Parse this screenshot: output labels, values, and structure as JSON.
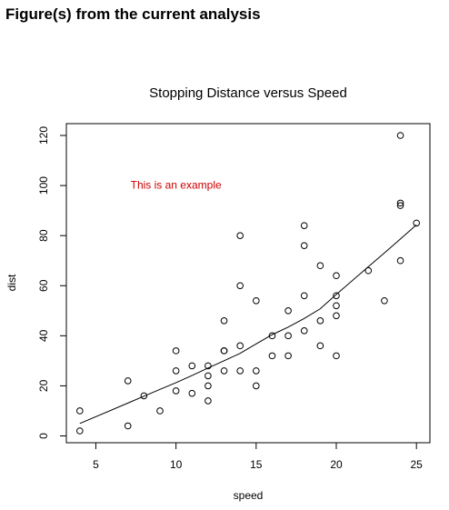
{
  "header": {
    "title": "Figure(s) from the current analysis"
  },
  "chart_data": {
    "type": "scatter",
    "title": "Stopping Distance versus Speed",
    "x_label": "speed",
    "y_label": "dist",
    "x": [
      4,
      4,
      7,
      7,
      8,
      9,
      10,
      10,
      10,
      11,
      11,
      12,
      12,
      12,
      12,
      13,
      13,
      13,
      13,
      14,
      14,
      14,
      14,
      15,
      15,
      15,
      16,
      16,
      17,
      17,
      17,
      18,
      18,
      18,
      18,
      19,
      19,
      19,
      20,
      20,
      20,
      20,
      20,
      22,
      23,
      24,
      24,
      24,
      24,
      25
    ],
    "y": [
      2,
      10,
      4,
      22,
      16,
      10,
      18,
      26,
      34,
      17,
      28,
      14,
      20,
      24,
      28,
      26,
      34,
      34,
      46,
      26,
      36,
      60,
      80,
      20,
      26,
      54,
      32,
      40,
      32,
      40,
      50,
      42,
      56,
      76,
      84,
      36,
      46,
      68,
      32,
      48,
      52,
      56,
      64,
      66,
      54,
      70,
      92,
      93,
      120,
      85
    ],
    "color": "#000000",
    "lines": [
      {
        "x": [
          4,
          7,
          8,
          9,
          10,
          11,
          12,
          13,
          14,
          15,
          16,
          17,
          18,
          19,
          20,
          22,
          23,
          24,
          25
        ],
        "y": [
          4.97,
          13.12,
          15.86,
          18.58,
          21.28,
          24.13,
          27.12,
          30.03,
          32.96,
          36.76,
          40.44,
          43.46,
          46.89,
          50.79,
          56.49,
          67.59,
          73.08,
          78.64,
          84.33
        ],
        "color": "#000000"
      }
    ],
    "annotation": {
      "text": "This is an example",
      "x": 10,
      "y": 100,
      "color": "#cc0000"
    },
    "xlim": [
      3.16,
      25.84
    ],
    "ylim": [
      -2.72,
      124.72
    ],
    "xticks": [
      5,
      10,
      15,
      20,
      25
    ],
    "yticks": [
      0,
      20,
      40,
      60,
      80,
      100,
      120
    ]
  }
}
